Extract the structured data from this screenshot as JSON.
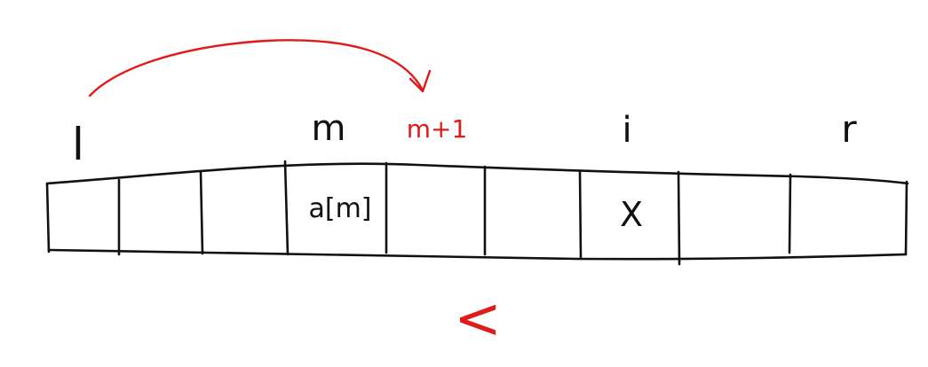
{
  "labels": {
    "l": "l",
    "m": "m",
    "m_plus_1": "m+1",
    "i": "i",
    "r": "r"
  },
  "cells": {
    "a_m": "a[m]",
    "x": "X"
  },
  "comparison": "<",
  "colors": {
    "ink": "#111111",
    "accent": "#e01b1b",
    "background": "#ffffff"
  },
  "array": {
    "cell_count": 9
  }
}
